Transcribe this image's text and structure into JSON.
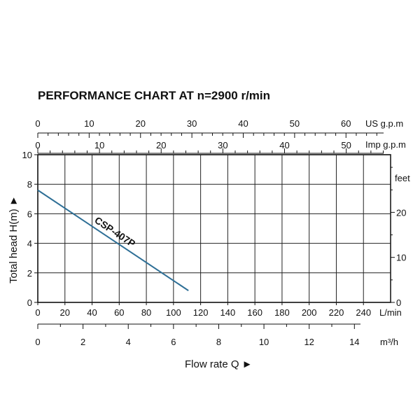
{
  "chart_data": {
    "type": "line",
    "title": "PERFORMANCE CHART AT n=2900 r/min",
    "xlabel": "Flow rate  Q ►",
    "ylabel": "Total head H(m) ►",
    "x_unit": "L/min",
    "y_unit": "",
    "xlim": [
      0,
      260
    ],
    "ylim": [
      0,
      10
    ],
    "x_ticks": [
      0,
      20,
      40,
      60,
      80,
      100,
      120,
      140,
      160,
      180,
      200,
      220,
      240
    ],
    "y_ticks": [
      0,
      2,
      4,
      6,
      8,
      10
    ],
    "grid": true,
    "series": [
      {
        "name": "CSP-407P",
        "x": [
          0,
          111
        ],
        "y": [
          7.6,
          0.8
        ],
        "color": "#2e6f96"
      }
    ],
    "secondary_axes": {
      "feet": {
        "label": "feet",
        "ticks": [
          0,
          10,
          20
        ],
        "factor": 3.2808
      },
      "us_gpm": {
        "label": "US g.p.m",
        "ticks": [
          0,
          10,
          20,
          30,
          40,
          50,
          60
        ],
        "factor": 0.264172,
        "minor_step": 2
      },
      "imp_gpm": {
        "label": "Imp g.p.m",
        "ticks": [
          0,
          10,
          20,
          30,
          40,
          50
        ],
        "factor": 0.219969,
        "minor_step": 2
      },
      "m3h": {
        "label": "m³/h",
        "ticks": [
          0,
          2,
          4,
          6,
          8,
          10,
          12,
          14
        ],
        "factor": 0.06,
        "minor_step": 1
      }
    }
  }
}
